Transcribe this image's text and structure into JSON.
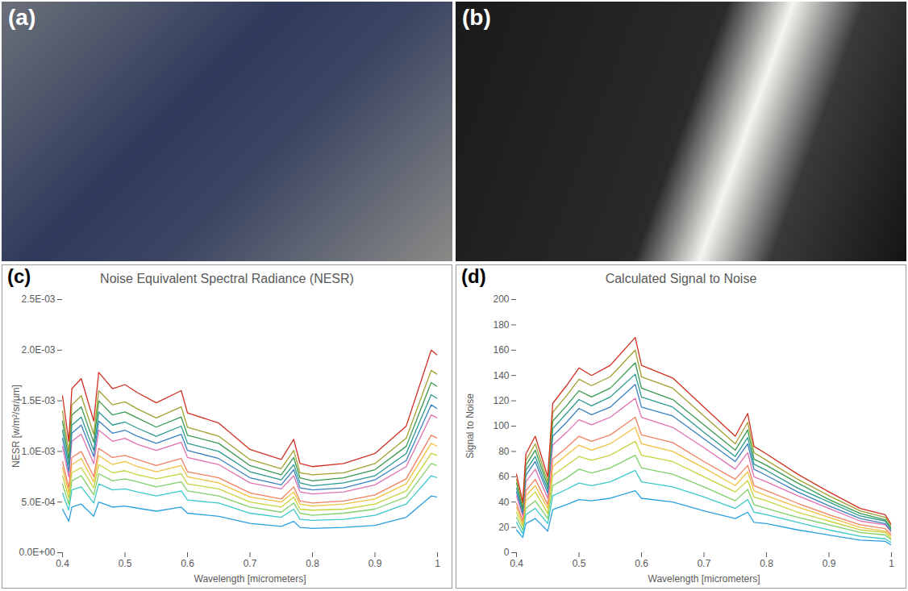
{
  "photos": [
    {
      "panel": "(a)"
    },
    {
      "panel": "(b)"
    }
  ],
  "chart_data": [
    {
      "type": "line",
      "panel": "(c)",
      "title": "Noise Equivalent Spectral Radiance (NESR)",
      "x_label": "Wavelength [micrometers]",
      "y_label": "NESR [w/m²/sr/µm]",
      "x": [
        0.4,
        0.41,
        0.415,
        0.43,
        0.45,
        0.458,
        0.48,
        0.5,
        0.52,
        0.55,
        0.59,
        0.6,
        0.65,
        0.7,
        0.75,
        0.77,
        0.78,
        0.8,
        0.85,
        0.9,
        0.95,
        0.99,
        1.0
      ],
      "xlim": [
        0.4,
        1
      ],
      "xticks": [
        0.4,
        0.5,
        0.6,
        0.7,
        0.8,
        0.9,
        1
      ],
      "ylim": [
        0,
        0.0025
      ],
      "yticks": [
        {
          "value": 0,
          "label": "0.0E+00"
        },
        {
          "value": 0.0005,
          "label": "5.0E-04"
        },
        {
          "value": 0.001,
          "label": "1.0E-03"
        },
        {
          "value": 0.0015,
          "label": "1.5E-03"
        },
        {
          "value": 0.002,
          "label": "2.0E-03"
        },
        {
          "value": 0.0025,
          "label": "2.5E-03"
        }
      ],
      "grid": false,
      "series": [
        {
          "color": "#2aa0e0",
          "values": [
            0.00043,
            0.00031,
            0.00045,
            0.00048,
            0.00036,
            0.0005,
            0.00045,
            0.00046,
            0.00044,
            0.00041,
            0.00045,
            0.00039,
            0.00036,
            0.00029,
            0.00026,
            0.00031,
            0.00025,
            0.00024,
            0.00025,
            0.00027,
            0.00035,
            0.00056,
            0.00055
          ]
        },
        {
          "color": "#3cc8c8",
          "values": [
            0.00059,
            0.00042,
            0.00062,
            0.00065,
            0.00049,
            0.00068,
            0.00062,
            0.00063,
            0.0006,
            0.00056,
            0.00061,
            0.00052,
            0.00049,
            0.00039,
            0.00035,
            0.00043,
            0.00033,
            0.00032,
            0.00033,
            0.00037,
            0.00048,
            0.00076,
            0.00074
          ]
        },
        {
          "color": "#7fd06a",
          "values": [
            0.00068,
            0.00048,
            0.00071,
            0.00076,
            0.00057,
            0.00078,
            0.00071,
            0.00073,
            0.0007,
            0.00065,
            0.0007,
            0.00061,
            0.00056,
            0.00045,
            0.0004,
            0.00049,
            0.00039,
            0.00037,
            0.00039,
            0.00043,
            0.00055,
            0.00088,
            0.00086
          ]
        },
        {
          "color": "#c8d23c",
          "values": [
            0.00076,
            0.00054,
            0.00079,
            0.00084,
            0.00064,
            0.00087,
            0.00079,
            0.00081,
            0.00077,
            0.00073,
            0.00078,
            0.00068,
            0.00063,
            0.0005,
            0.00045,
            0.00055,
            0.00043,
            0.00042,
            0.00043,
            0.00048,
            0.00061,
            0.00098,
            0.00096
          ]
        },
        {
          "color": "#f0c040",
          "values": [
            0.00084,
            0.00059,
            0.00087,
            0.00093,
            0.0007,
            0.00096,
            0.00087,
            0.0009,
            0.00085,
            0.0008,
            0.00086,
            0.00075,
            0.00069,
            0.00055,
            0.0005,
            0.0006,
            0.00048,
            0.00046,
            0.00048,
            0.00053,
            0.00068,
            0.00108,
            0.00105
          ]
        },
        {
          "color": "#f08060",
          "values": [
            0.0009,
            0.00064,
            0.00094,
            0.001,
            0.00075,
            0.00103,
            0.00094,
            0.00096,
            0.00092,
            0.00086,
            0.00093,
            0.0008,
            0.00074,
            0.00059,
            0.00053,
            0.00065,
            0.00051,
            0.00049,
            0.00051,
            0.00057,
            0.00073,
            0.00116,
            0.00113
          ]
        },
        {
          "color": "#e070b0",
          "values": [
            0.00105,
            0.00075,
            0.0011,
            0.00117,
            0.00088,
            0.00121,
            0.0011,
            0.00113,
            0.00107,
            0.00101,
            0.00109,
            0.00094,
            0.00087,
            0.00069,
            0.00063,
            0.00076,
            0.0006,
            0.00058,
            0.0006,
            0.00067,
            0.00085,
            0.00136,
            0.00133
          ]
        },
        {
          "color": "#3a80c0",
          "values": [
            0.00113,
            0.0008,
            0.00118,
            0.00126,
            0.00095,
            0.0013,
            0.00118,
            0.00121,
            0.00115,
            0.00108,
            0.00117,
            0.00101,
            0.00093,
            0.00074,
            0.00067,
            0.00082,
            0.00064,
            0.00062,
            0.00064,
            0.00072,
            0.00091,
            0.00146,
            0.00142
          ]
        },
        {
          "color": "#2a9a90",
          "values": [
            0.00121,
            0.00086,
            0.00126,
            0.00134,
            0.00101,
            0.00139,
            0.00126,
            0.00129,
            0.00123,
            0.00115,
            0.00125,
            0.00108,
            0.001,
            0.0008,
            0.00072,
            0.00087,
            0.00069,
            0.00066,
            0.00069,
            0.00076,
            0.00098,
            0.00156,
            0.00152
          ]
        },
        {
          "color": "#3a9a50",
          "values": [
            0.0013,
            0.00092,
            0.00136,
            0.00144,
            0.00109,
            0.0015,
            0.00136,
            0.00139,
            0.00133,
            0.00124,
            0.00134,
            0.00116,
            0.00108,
            0.00086,
            0.00077,
            0.00094,
            0.00074,
            0.00071,
            0.00074,
            0.00082,
            0.00105,
            0.00168,
            0.00164
          ]
        },
        {
          "color": "#a0a030",
          "values": [
            0.0014,
            0.00099,
            0.00146,
            0.00155,
            0.00117,
            0.0016,
            0.00146,
            0.00149,
            0.00142,
            0.00133,
            0.00144,
            0.00124,
            0.00115,
            0.00092,
            0.00083,
            0.00101,
            0.00079,
            0.00077,
            0.00079,
            0.00088,
            0.00113,
            0.0018,
            0.00176
          ]
        },
        {
          "color": "#d03020",
          "values": [
            0.00155,
            0.0011,
            0.00162,
            0.00172,
            0.0013,
            0.00178,
            0.00162,
            0.00166,
            0.00158,
            0.00148,
            0.0016,
            0.00138,
            0.00128,
            0.00102,
            0.00092,
            0.00112,
            0.00088,
            0.00085,
            0.00088,
            0.00098,
            0.00125,
            0.002,
            0.00195
          ]
        }
      ]
    },
    {
      "type": "line",
      "panel": "(d)",
      "title": "Calculated Signal to Noise",
      "x_label": "Wavelength [micrometers]",
      "y_label": "Signal to Noise",
      "x": [
        0.4,
        0.41,
        0.415,
        0.43,
        0.45,
        0.458,
        0.48,
        0.5,
        0.52,
        0.55,
        0.59,
        0.6,
        0.65,
        0.7,
        0.75,
        0.77,
        0.78,
        0.8,
        0.85,
        0.9,
        0.95,
        0.99,
        1.0
      ],
      "xlim": [
        0.4,
        1
      ],
      "xticks": [
        0.4,
        0.5,
        0.6,
        0.7,
        0.8,
        0.9,
        1
      ],
      "ylim": [
        0,
        200
      ],
      "yticks": [
        0,
        20,
        40,
        60,
        80,
        100,
        120,
        140,
        160,
        180,
        200
      ],
      "grid": false,
      "series": [
        {
          "color": "#2aa0e0",
          "values": [
            18,
            12,
            23,
            27,
            17,
            34,
            38,
            42,
            41,
            43,
            49,
            43,
            40,
            33,
            27,
            32,
            24,
            23,
            18,
            14,
            10,
            9,
            6
          ]
        },
        {
          "color": "#3cc8c8",
          "values": [
            24,
            15,
            30,
            35,
            23,
            45,
            50,
            55,
            53,
            56,
            65,
            56,
            52,
            44,
            35,
            42,
            32,
            30,
            24,
            18,
            13,
            11,
            8
          ]
        },
        {
          "color": "#7fd06a",
          "values": [
            28,
            18,
            35,
            41,
            27,
            53,
            59,
            66,
            63,
            67,
            77,
            67,
            62,
            52,
            41,
            50,
            38,
            35,
            28,
            22,
            16,
            14,
            10
          ]
        },
        {
          "color": "#c8d23c",
          "values": [
            32,
            21,
            41,
            48,
            31,
            61,
            69,
            76,
            73,
            77,
            88,
            77,
            72,
            60,
            48,
            57,
            44,
            41,
            32,
            25,
            18,
            16,
            11
          ]
        },
        {
          "color": "#f0c040",
          "values": [
            36,
            23,
            45,
            53,
            35,
            68,
            77,
            85,
            81,
            86,
            99,
            86,
            80,
            67,
            53,
            64,
            49,
            45,
            36,
            28,
            20,
            17,
            13
          ]
        },
        {
          "color": "#f08060",
          "values": [
            39,
            25,
            49,
            58,
            38,
            74,
            83,
            92,
            88,
            93,
            107,
            93,
            87,
            72,
            58,
            69,
            53,
            49,
            39,
            30,
            22,
            19,
            14
          ]
        },
        {
          "color": "#e070b0",
          "values": [
            45,
            29,
            56,
            66,
            43,
            85,
            95,
            105,
            101,
            107,
            122,
            107,
            99,
            83,
            66,
            79,
            60,
            56,
            45,
            35,
            25,
            22,
            16
          ]
        },
        {
          "color": "#3a80c0",
          "values": [
            48,
            31,
            61,
            72,
            47,
            92,
            103,
            114,
            109,
            115,
            133,
            115,
            108,
            90,
            72,
            86,
            66,
            61,
            48,
            37,
            27,
            23,
            17
          ]
        },
        {
          "color": "#2a9a90",
          "values": [
            51,
            33,
            65,
            76,
            50,
            98,
            110,
            121,
            116,
            123,
            141,
            123,
            115,
            95,
            76,
            91,
            70,
            65,
            51,
            40,
            29,
            25,
            18
          ]
        },
        {
          "color": "#3a9a50",
          "values": [
            55,
            35,
            69,
            81,
            53,
            104,
            116,
            128,
            123,
            130,
            150,
            130,
            121,
            101,
            81,
            97,
            74,
            69,
            55,
            42,
            31,
            26,
            19
          ]
        },
        {
          "color": "#a0a030",
          "values": [
            58,
            38,
            73,
            86,
            56,
            111,
            124,
            137,
            132,
            139,
            160,
            139,
            130,
            108,
            86,
            103,
            79,
            73,
            58,
            45,
            33,
            28,
            21
          ]
        },
        {
          "color": "#d03020",
          "values": [
            62,
            40,
            78,
            92,
            60,
            118,
            132,
            146,
            140,
            148,
            170,
            148,
            138,
            115,
            92,
            110,
            84,
            78,
            62,
            48,
            35,
            30,
            22
          ]
        }
      ]
    }
  ]
}
